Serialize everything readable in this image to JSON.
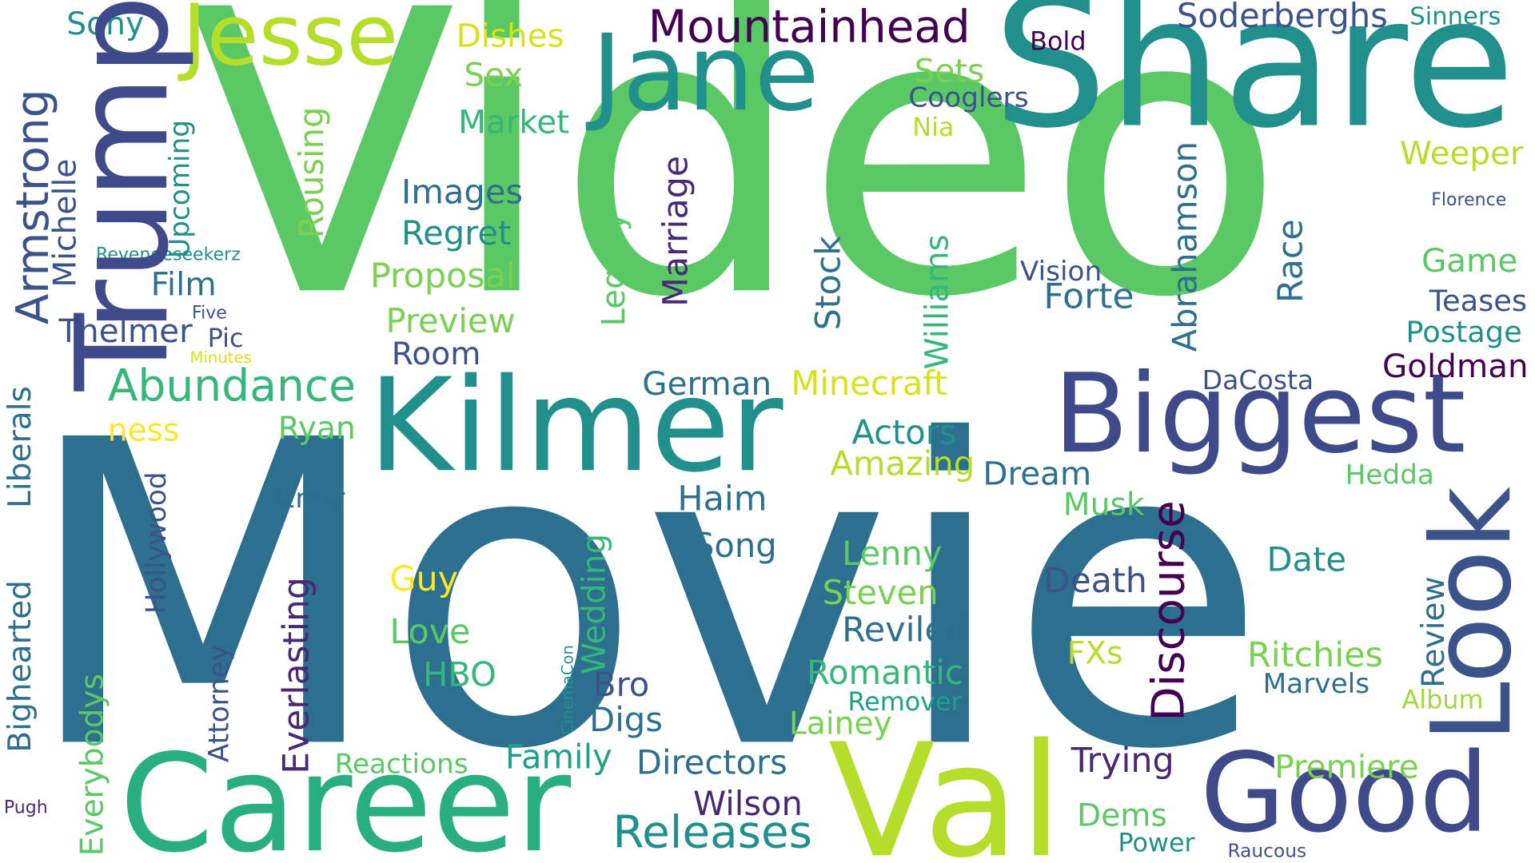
{
  "words": [
    {
      "text": "Movie",
      "color": "#2d6f8e"
    },
    {
      "text": "Video",
      "color": "#5ac864"
    },
    {
      "text": "Share",
      "color": "#21908d"
    },
    {
      "text": "Career",
      "color": "#29af7f"
    },
    {
      "text": "Val",
      "color": "#b5de2b"
    },
    {
      "text": "Kilmer",
      "color": "#21908d"
    },
    {
      "text": "Biggest",
      "color": "#3e4a89"
    },
    {
      "text": "Jane",
      "color": "#21908d"
    },
    {
      "text": "Jesse",
      "color": "#b5de2b"
    },
    {
      "text": "Trump",
      "color": "#3e4a89"
    },
    {
      "text": "Good",
      "color": "#3e4a89"
    },
    {
      "text": "Look",
      "color": "#3b528b"
    },
    {
      "text": "Mountainhead",
      "color": "#440154"
    },
    {
      "text": "Soderberghs",
      "color": "#3b528b"
    },
    {
      "text": "Sinners",
      "color": "#21908d"
    },
    {
      "text": "Sony",
      "color": "#21908d"
    },
    {
      "text": "Dishes",
      "color": "#d8e219"
    },
    {
      "text": "Sex",
      "color": "#7ad151"
    },
    {
      "text": "Market",
      "color": "#35b779"
    },
    {
      "text": "Bold",
      "color": "#440154"
    },
    {
      "text": "Sets",
      "color": "#7ad151"
    },
    {
      "text": "Cooglers",
      "color": "#3b528b"
    },
    {
      "text": "Nia",
      "color": "#b5de2b"
    },
    {
      "text": "Weeper",
      "color": "#b5de2b"
    },
    {
      "text": "Florence",
      "color": "#3b528b"
    },
    {
      "text": "Game",
      "color": "#5ac864"
    },
    {
      "text": "Teases",
      "color": "#3b528b"
    },
    {
      "text": "Postage",
      "color": "#21908d"
    },
    {
      "text": "Goldman",
      "color": "#440154"
    },
    {
      "text": "DaCosta",
      "color": "#3b528b"
    },
    {
      "text": "Hedda",
      "color": "#5ac864"
    },
    {
      "text": "Date",
      "color": "#21908d"
    },
    {
      "text": "Ritchies",
      "color": "#7ad151"
    },
    {
      "text": "Marvels",
      "color": "#31688e"
    },
    {
      "text": "Album",
      "color": "#a0da39"
    },
    {
      "text": "Premiere",
      "color": "#7ad151"
    },
    {
      "text": "Raucous",
      "color": "#3b528b"
    },
    {
      "text": "Power",
      "color": "#21908d"
    },
    {
      "text": "Dems",
      "color": "#5ac864"
    },
    {
      "text": "Trying",
      "color": "#482878"
    },
    {
      "text": "FXs",
      "color": "#b5de2b"
    },
    {
      "text": "Death",
      "color": "#3b528b"
    },
    {
      "text": "Musk",
      "color": "#5ac864"
    },
    {
      "text": "Dream",
      "color": "#31688e"
    },
    {
      "text": "Vision",
      "color": "#3b528b"
    },
    {
      "text": "Forte",
      "color": "#31688e"
    },
    {
      "text": "Armstrong",
      "color": "#3b528b"
    },
    {
      "text": "Michelle",
      "color": "#3b528b"
    },
    {
      "text": "Upcoming",
      "color": "#21908d"
    },
    {
      "text": "Revengeseekerz",
      "color": "#21908d"
    },
    {
      "text": "Rousing",
      "color": "#7ad151"
    },
    {
      "text": "Images",
      "color": "#31688e"
    },
    {
      "text": "Regret",
      "color": "#21908d"
    },
    {
      "text": "Proposal",
      "color": "#7ad151"
    },
    {
      "text": "Preview",
      "color": "#7ad151"
    },
    {
      "text": "Film",
      "color": "#31688e"
    },
    {
      "text": "Thelmer",
      "color": "#3b528b"
    },
    {
      "text": "Five",
      "color": "#3b528b"
    },
    {
      "text": "Pic",
      "color": "#3b528b"
    },
    {
      "text": "Minutes",
      "color": "#d8e219"
    },
    {
      "text": "Room",
      "color": "#3b528b"
    },
    {
      "text": "Abundance",
      "color": "#35b779"
    },
    {
      "text": "German",
      "color": "#31688e"
    },
    {
      "text": "Minecraft",
      "color": "#d8e219"
    },
    {
      "text": "Actors",
      "color": "#21908d"
    },
    {
      "text": "Amazing",
      "color": "#b5de2b"
    },
    {
      "text": "Ryan",
      "color": "#5ac864"
    },
    {
      "text": "ness",
      "color": "#fde725"
    },
    {
      "text": "Error",
      "color": "#31688e"
    },
    {
      "text": "Haim",
      "color": "#31688e"
    },
    {
      "text": "Song",
      "color": "#31688e"
    },
    {
      "text": "Lenny",
      "color": "#5ac864"
    },
    {
      "text": "Steven",
      "color": "#7ad151"
    },
    {
      "text": "Reviled",
      "color": "#31688e"
    },
    {
      "text": "Romantic",
      "color": "#35b779"
    },
    {
      "text": "Remover",
      "color": "#1fa188"
    },
    {
      "text": "Lainey",
      "color": "#7ad151"
    },
    {
      "text": "Guy",
      "color": "#fde725"
    },
    {
      "text": "Love",
      "color": "#5ac864"
    },
    {
      "text": "HBO",
      "color": "#35b779"
    },
    {
      "text": "Bro",
      "color": "#3b528b"
    },
    {
      "text": "Digs",
      "color": "#31688e"
    },
    {
      "text": "Family",
      "color": "#1fa188"
    },
    {
      "text": "Directors",
      "color": "#31688e"
    },
    {
      "text": "Reactions",
      "color": "#5ac864"
    },
    {
      "text": "Wilson",
      "color": "#482878"
    },
    {
      "text": "Releases",
      "color": "#21908d"
    },
    {
      "text": "Pugh",
      "color": "#482878"
    },
    {
      "text": "Liberals",
      "color": "#31688e"
    },
    {
      "text": "Bighearted",
      "color": "#31688e"
    },
    {
      "text": "Hollywood",
      "color": "#3b528b"
    },
    {
      "text": "Everybodys",
      "color": "#5ac864"
    },
    {
      "text": "Attorney",
      "color": "#3b528b"
    },
    {
      "text": "Everlasting",
      "color": "#482878"
    },
    {
      "text": "CinemaCon",
      "color": "#21908d"
    },
    {
      "text": "Wedding",
      "color": "#35b779"
    },
    {
      "text": "Legacy",
      "color": "#5ac864"
    },
    {
      "text": "Marriage",
      "color": "#482878"
    },
    {
      "text": "Stock",
      "color": "#31688e"
    },
    {
      "text": "Williams",
      "color": "#35b779"
    },
    {
      "text": "Abrahamson",
      "color": "#31688e"
    },
    {
      "text": "Race",
      "color": "#31688e"
    },
    {
      "text": "Discourse",
      "color": "#440154"
    },
    {
      "text": "Review",
      "color": "#31688e"
    }
  ]
}
